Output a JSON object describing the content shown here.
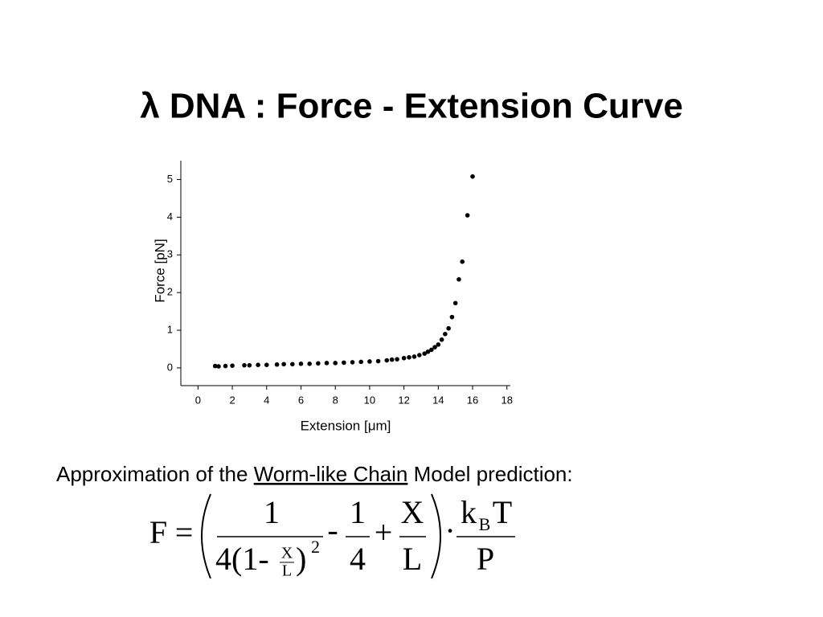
{
  "slide_title": "λ DNA : Force - Extension Curve",
  "chart_data": {
    "type": "scatter",
    "x_label": "Extension    [μm]",
    "y_label": "Force   [pN]",
    "color": "#000000",
    "xlim": [
      -1,
      18.2
    ],
    "ylim": [
      -0.47,
      5.5
    ],
    "xticks": [
      0,
      2,
      4,
      6,
      8,
      10,
      12,
      14,
      16,
      18
    ],
    "yticks": [
      0,
      1,
      2,
      3,
      4,
      5
    ],
    "x": [
      1.0,
      1.2,
      1.6,
      2.0,
      2.7,
      3.0,
      3.5,
      4.0,
      4.6,
      5.0,
      5.5,
      6.0,
      6.5,
      7.0,
      7.5,
      8.0,
      8.5,
      9.0,
      9.5,
      10.0,
      10.5,
      11.0,
      11.3,
      11.6,
      12.0,
      12.3,
      12.6,
      12.9,
      13.2,
      13.4,
      13.6,
      13.8,
      14.0,
      14.2,
      14.4,
      14.6,
      14.8,
      15.0,
      15.2,
      15.4,
      15.7,
      16.0
    ],
    "values": [
      0.05,
      0.04,
      0.05,
      0.06,
      0.07,
      0.07,
      0.08,
      0.08,
      0.09,
      0.1,
      0.1,
      0.11,
      0.11,
      0.12,
      0.13,
      0.13,
      0.14,
      0.15,
      0.16,
      0.17,
      0.18,
      0.2,
      0.22,
      0.23,
      0.26,
      0.28,
      0.3,
      0.34,
      0.38,
      0.43,
      0.48,
      0.55,
      0.62,
      0.75,
      0.9,
      1.05,
      1.35,
      1.72,
      2.35,
      2.82,
      4.05,
      5.08
    ]
  },
  "caption": {
    "before": "Approximation of the ",
    "link": "Worm-like Chain",
    "after": " Model prediction:"
  },
  "formula": {
    "lhs": "F",
    "equals": "=",
    "num1": "1",
    "den1": "4(1-",
    "den1_x": "X",
    "den1_l": "L",
    "den1_close": ")",
    "den1_exp": "2",
    "minus": "-",
    "num2": "1",
    "den2": "4",
    "plus": "+",
    "num3": "X",
    "den3": "L",
    "dot": "·",
    "k": "k",
    "sub_b": "B",
    "t": "T",
    "den4": "P"
  }
}
